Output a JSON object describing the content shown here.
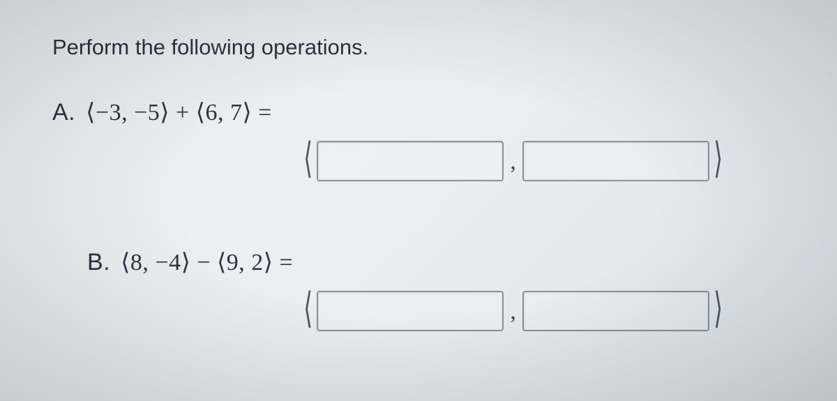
{
  "instruction": "Perform the following operations.",
  "problems": {
    "a": {
      "label": "A.",
      "expression": "⟨−3, −5⟩ + ⟨6, 7⟩ ="
    },
    "b": {
      "label": "B.",
      "expression": "⟨8, −4⟩ − ⟨9, 2⟩ ="
    }
  },
  "brackets": {
    "left": "⟨",
    "right": "⟩",
    "comma": ","
  },
  "styling": {
    "background_color": "#e8eef2",
    "text_color": "#2a3540",
    "input_border_color": "#8a9098",
    "instruction_fontsize": 31,
    "problem_fontsize": 34,
    "input_width": 268,
    "input_height": 58
  }
}
